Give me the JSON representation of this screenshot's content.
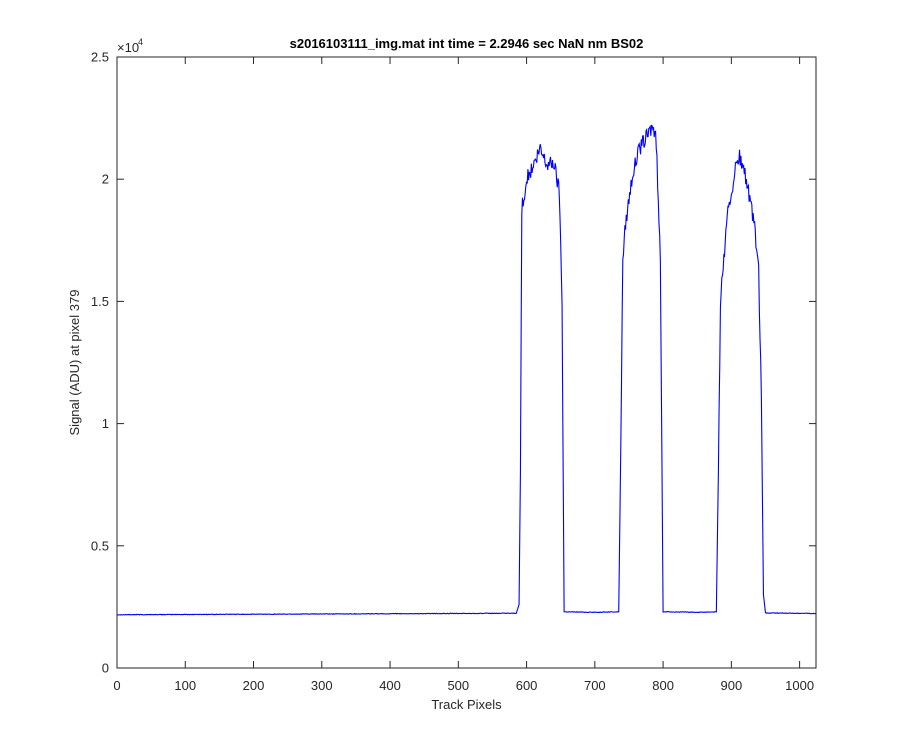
{
  "chart_data": {
    "type": "line",
    "title": "s2016103111_img.mat int time = 2.2946 sec  NaN nm BS02",
    "xlabel": "Track Pixels",
    "ylabel": "Signal (ADU) at pixel 379",
    "xlim": [
      0,
      1024
    ],
    "ylim": [
      0,
      25000
    ],
    "y_exponent_label": "×10",
    "y_exponent": "4",
    "xticks": [
      0,
      100,
      200,
      300,
      400,
      500,
      600,
      700,
      800,
      900,
      1000
    ],
    "yticks": [
      0,
      5000,
      10000,
      15000,
      20000,
      25000
    ],
    "yticklabels": [
      "0",
      "0.5",
      "1",
      "1.5",
      "2",
      "2.5"
    ],
    "grid": false,
    "series": [
      {
        "color": "#0000ff",
        "x": [
          0,
          100,
          200,
          300,
          400,
          500,
          585,
          589,
          591,
          593,
          600,
          610,
          620,
          630,
          640,
          648,
          652,
          655,
          700,
          735,
          738,
          741,
          745,
          755,
          765,
          775,
          785,
          790,
          793,
          796,
          800,
          850,
          878,
          881,
          884,
          888,
          895,
          905,
          912,
          920,
          928,
          935,
          940,
          944,
          947,
          950,
          1000,
          1024
        ],
        "y": [
          2180,
          2190,
          2200,
          2210,
          2220,
          2230,
          2240,
          2600,
          8000,
          18800,
          20000,
          20500,
          21200,
          20600,
          20700,
          19500,
          15000,
          2300,
          2280,
          2300,
          9000,
          16800,
          18200,
          20200,
          21200,
          21700,
          22200,
          21500,
          19000,
          16800,
          2300,
          2280,
          2300,
          8000,
          15000,
          16500,
          18600,
          20300,
          20900,
          20200,
          19000,
          17800,
          16200,
          11000,
          3000,
          2250,
          2240,
          2230
        ]
      }
    ]
  }
}
